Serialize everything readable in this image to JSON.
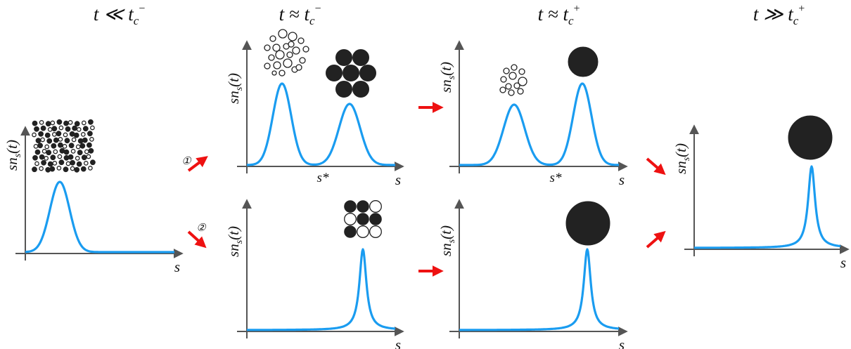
{
  "headers": {
    "h1": {
      "t": "t",
      "op": "≪",
      "tc": "t",
      "sub": "c",
      "sup": "−"
    },
    "h2": {
      "t": "t",
      "op": "≈",
      "tc": "t",
      "sub": "c",
      "sup": "−"
    },
    "h3": {
      "t": "t",
      "op": "≈",
      "tc": "t",
      "sub": "c",
      "sup": "+"
    },
    "h4": {
      "t": "t",
      "op": "≫",
      "tc": "t",
      "sub": "c",
      "sup": "+"
    }
  },
  "axis": {
    "ylabel": {
      "pre": "sn",
      "sub": "s",
      "post": "(t)"
    },
    "xlabel": "s",
    "sstar": "s*"
  },
  "path_markers": {
    "path1": "①",
    "path2": "②"
  },
  "colors": {
    "curve": "#1a9cf0",
    "axis": "#555555",
    "arrow": "#ee1111",
    "cluster": "#222222"
  }
}
